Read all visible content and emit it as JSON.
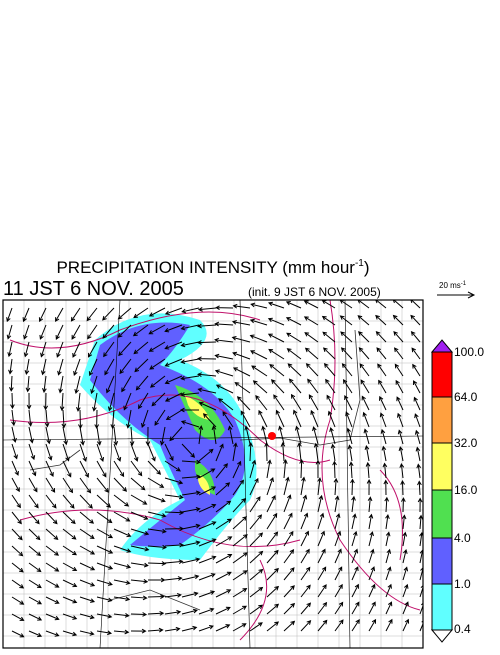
{
  "header": {
    "title": "PRECIPITATION INTENSITY (mm hour",
    "title_sup": "-1",
    "title_end": ")",
    "time": "11 JST 6 NOV. 2005",
    "init": "(init. 9 JST 6 NOV. 2005)"
  },
  "vector_key": {
    "label": "20 ms",
    "label_sup": "-1"
  },
  "colorbar": {
    "labels": [
      "100.0",
      "64.0",
      "32.0",
      "16.0",
      "4.0",
      "1.0",
      "0.4"
    ],
    "colors": [
      "#a020f0",
      "#ff0000",
      "#ffa040",
      "#ffff60",
      "#50e050",
      "#6060ff",
      "#60ffff",
      "#ffffff"
    ]
  }
}
